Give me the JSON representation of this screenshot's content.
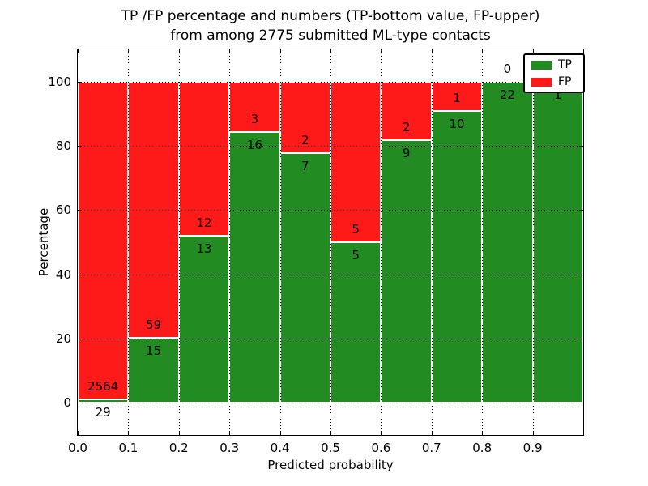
{
  "figure": {
    "title_line1": "TP /FP percentage and numbers (TP-bottom value, FP-upper)",
    "title_line2": "from among 2775 submitted ML-type contacts"
  },
  "chart_data": {
    "type": "bar",
    "variant": "stacked-percentage-histogram",
    "title": "TP /FP percentage and numbers (TP-bottom value, FP-upper) from among 2775 submitted ML-type contacts",
    "xlabel": "Predicted probability",
    "ylabel": "Percentage",
    "xlim": [
      0.0,
      1.0
    ],
    "ylim": [
      -10,
      110
    ],
    "grid": "dotted",
    "xticks": [
      "0.0",
      "0.1",
      "0.2",
      "0.3",
      "0.4",
      "0.5",
      "0.6",
      "0.7",
      "0.8",
      "0.9"
    ],
    "yticks": [
      0,
      20,
      40,
      60,
      80,
      100
    ],
    "legend": {
      "position": "upper right",
      "entries": [
        {
          "label": "TP",
          "color": "#228B22"
        },
        {
          "label": "FP",
          "color": "#FF1A1A"
        }
      ]
    },
    "series_note": "Each bar spans 0.1 of predicted probability; green TP segment from 0 up to tp_pct, red FP segment fills to 100. Numeric labels show raw counts: TP below segment top, FP above it.",
    "bars": [
      {
        "bin": "0.0-0.1",
        "tp": 29,
        "fp": 2564,
        "tp_pct": 1.1
      },
      {
        "bin": "0.1-0.2",
        "tp": 15,
        "fp": 59,
        "tp_pct": 20.3
      },
      {
        "bin": "0.2-0.3",
        "tp": 13,
        "fp": 12,
        "tp_pct": 52.0
      },
      {
        "bin": "0.3-0.4",
        "tp": 16,
        "fp": 3,
        "tp_pct": 84.2
      },
      {
        "bin": "0.4-0.5",
        "tp": 7,
        "fp": 2,
        "tp_pct": 77.8
      },
      {
        "bin": "0.5-0.6",
        "tp": 5,
        "fp": 5,
        "tp_pct": 50.0
      },
      {
        "bin": "0.6-0.7",
        "tp": 9,
        "fp": 2,
        "tp_pct": 81.8
      },
      {
        "bin": "0.7-0.8",
        "tp": 10,
        "fp": 1,
        "tp_pct": 90.9
      },
      {
        "bin": "0.8-0.9",
        "tp": 22,
        "fp": 0,
        "tp_pct": 100.0
      },
      {
        "bin": "0.9-1.0",
        "tp": 1,
        "fp": null,
        "tp_pct": 100.0
      }
    ]
  },
  "colors": {
    "tp_green": "#228B22",
    "fp_red": "#FF1A1A",
    "grid": "#000000",
    "background": "#FFFFFF"
  }
}
